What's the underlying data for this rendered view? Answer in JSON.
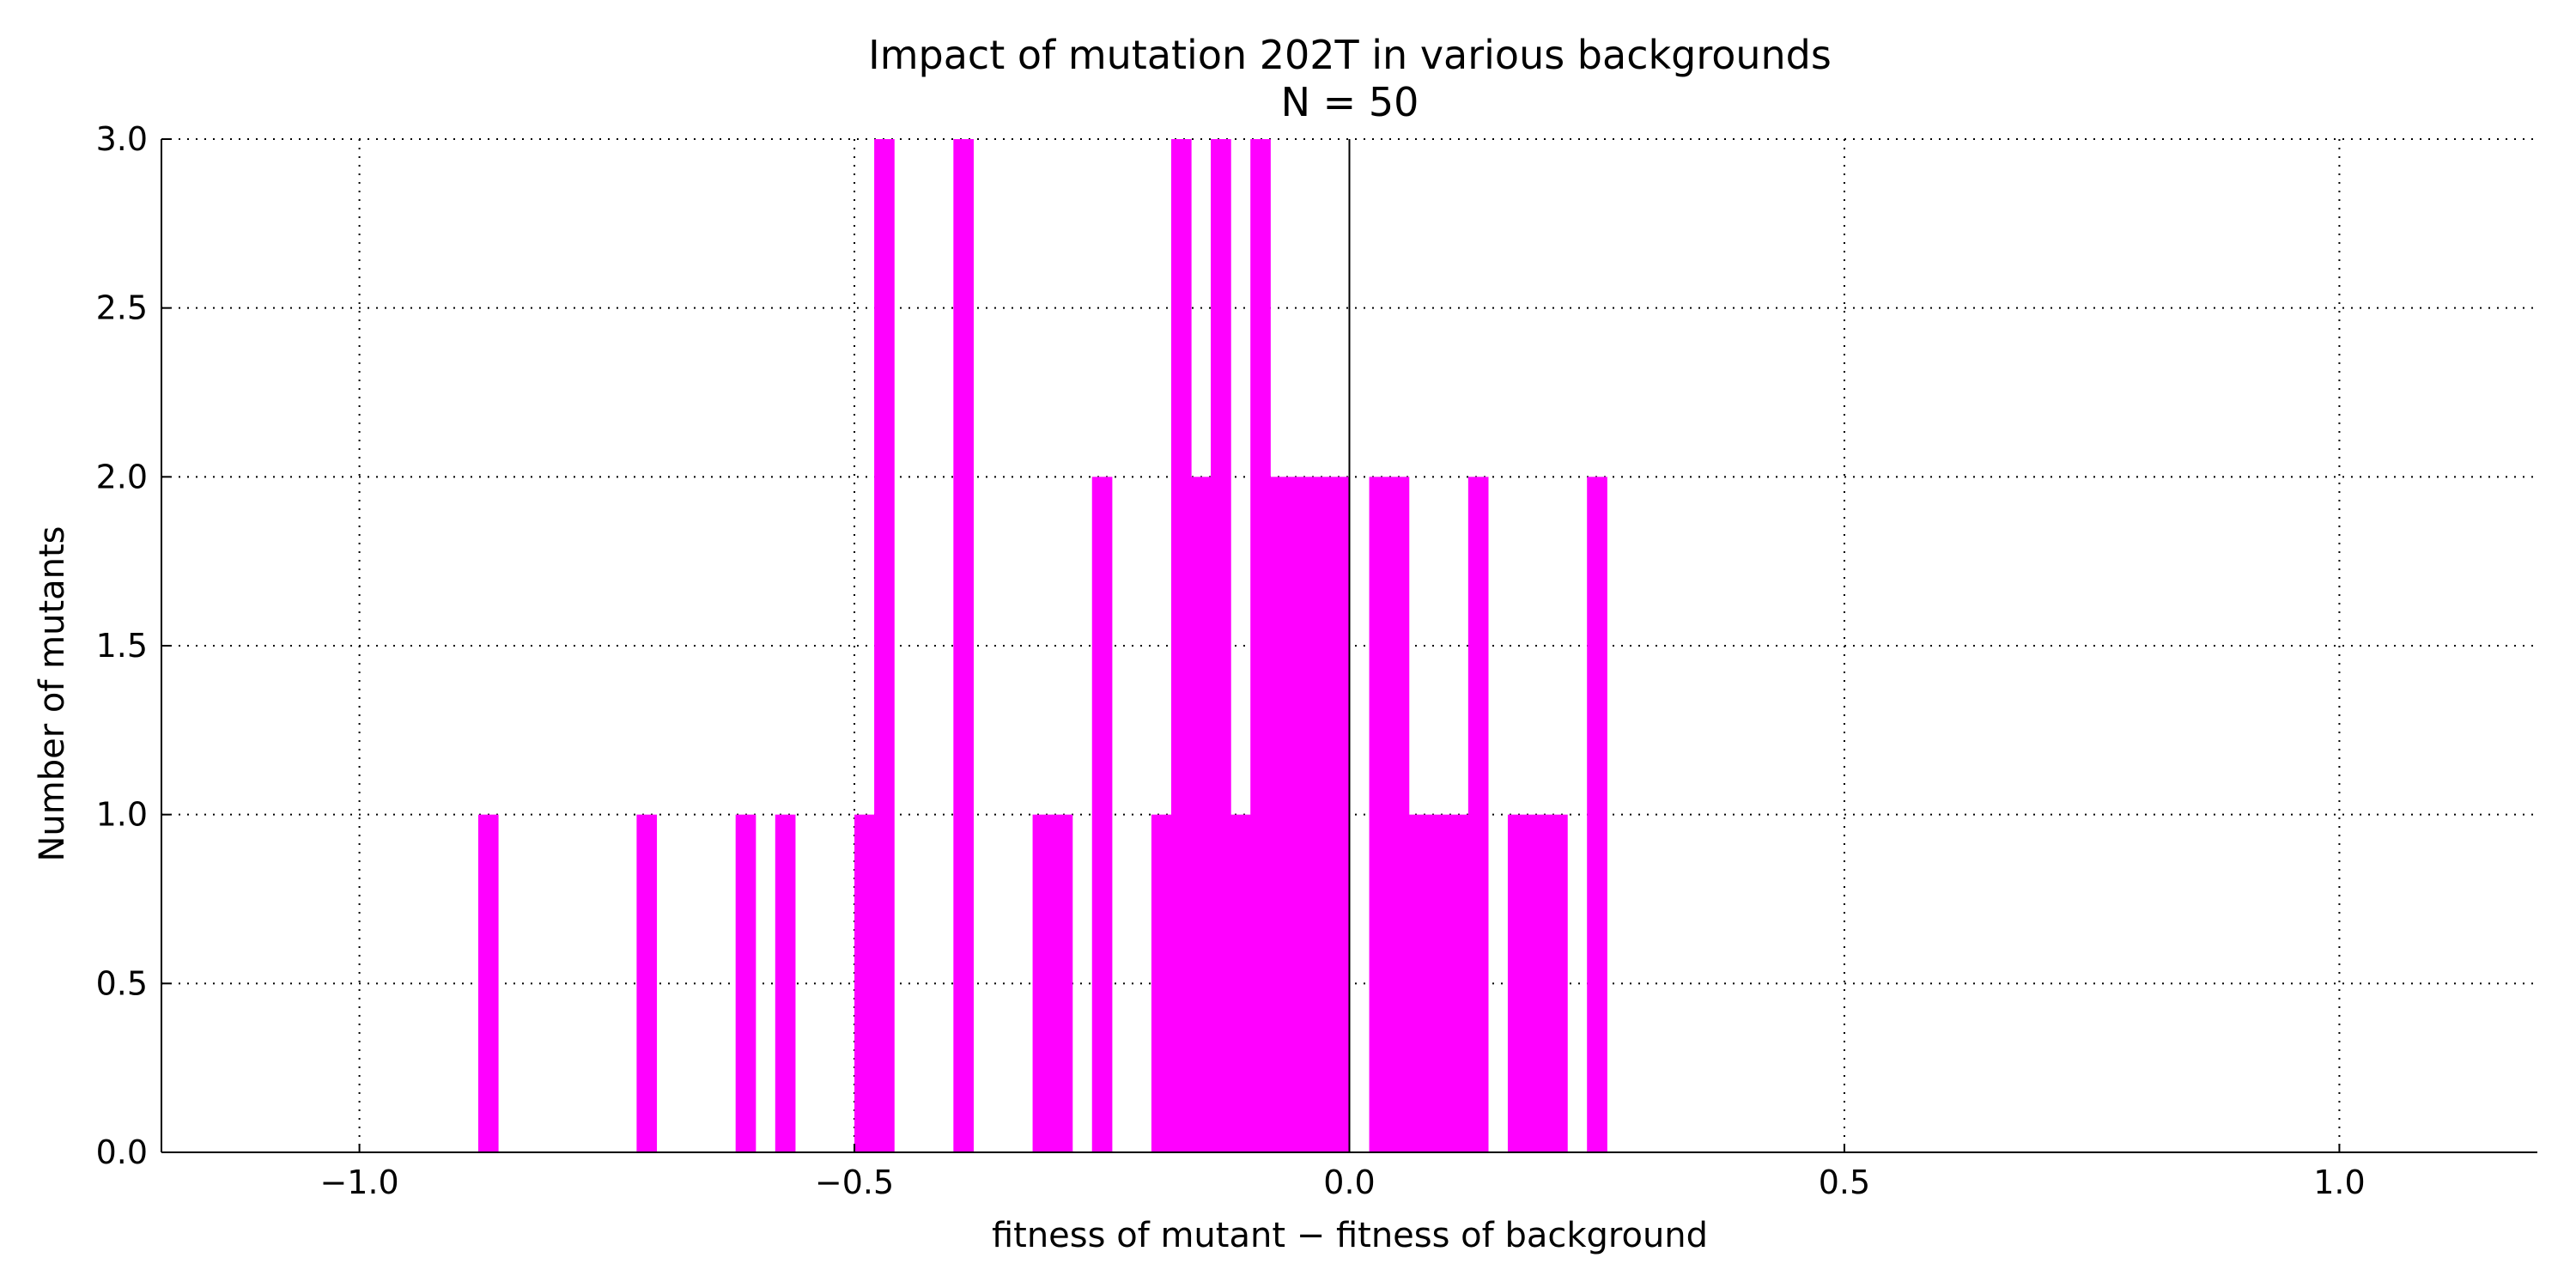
{
  "chart_data": {
    "type": "bar",
    "title": "Impact of mutation 202T in various backgrounds",
    "subtitle": "N = 50",
    "xlabel": "fitness of mutant  −  fitness of background",
    "ylabel": "Number of mutants",
    "xlim": [
      -1.2,
      1.2
    ],
    "ylim": [
      0.0,
      3.0
    ],
    "grid": true,
    "bar_color": "#ff00ff",
    "zero_line": 0.0,
    "x_ticks": [
      {
        "value": -1.0,
        "label": "−1.0"
      },
      {
        "value": -0.5,
        "label": "−0.5"
      },
      {
        "value": 0.0,
        "label": "0.0"
      },
      {
        "value": 0.5,
        "label": "0.5"
      },
      {
        "value": 1.0,
        "label": "1.0"
      }
    ],
    "y_ticks": [
      {
        "value": 0.0,
        "label": "0.0"
      },
      {
        "value": 0.5,
        "label": "0.5"
      },
      {
        "value": 1.0,
        "label": "1.0"
      },
      {
        "value": 1.5,
        "label": "1.5"
      },
      {
        "value": 2.0,
        "label": "2.0"
      },
      {
        "value": 2.5,
        "label": "2.5"
      },
      {
        "value": 3.0,
        "label": "3.0"
      }
    ],
    "bins": [
      {
        "x0": -0.88,
        "x1": -0.86,
        "count": 1
      },
      {
        "x0": -0.72,
        "x1": -0.7,
        "count": 1
      },
      {
        "x0": -0.62,
        "x1": -0.6,
        "count": 1
      },
      {
        "x0": -0.58,
        "x1": -0.56,
        "count": 1
      },
      {
        "x0": -0.5,
        "x1": -0.48,
        "count": 1
      },
      {
        "x0": -0.48,
        "x1": -0.46,
        "count": 3
      },
      {
        "x0": -0.4,
        "x1": -0.38,
        "count": 3
      },
      {
        "x0": -0.32,
        "x1": -0.3,
        "count": 1
      },
      {
        "x0": -0.3,
        "x1": -0.28,
        "count": 1
      },
      {
        "x0": -0.26,
        "x1": -0.24,
        "count": 2
      },
      {
        "x0": -0.2,
        "x1": -0.18,
        "count": 1
      },
      {
        "x0": -0.18,
        "x1": -0.16,
        "count": 3
      },
      {
        "x0": -0.16,
        "x1": -0.14,
        "count": 2
      },
      {
        "x0": -0.14,
        "x1": -0.12,
        "count": 3
      },
      {
        "x0": -0.12,
        "x1": -0.1,
        "count": 1
      },
      {
        "x0": -0.1,
        "x1": -0.08,
        "count": 3
      },
      {
        "x0": -0.08,
        "x1": -0.06,
        "count": 2
      },
      {
        "x0": -0.06,
        "x1": -0.04,
        "count": 2
      },
      {
        "x0": -0.04,
        "x1": -0.02,
        "count": 2
      },
      {
        "x0": -0.02,
        "x1": 0.0,
        "count": 2
      },
      {
        "x0": 0.02,
        "x1": 0.04,
        "count": 2
      },
      {
        "x0": 0.04,
        "x1": 0.06,
        "count": 2
      },
      {
        "x0": 0.06,
        "x1": 0.08,
        "count": 1
      },
      {
        "x0": 0.08,
        "x1": 0.1,
        "count": 1
      },
      {
        "x0": 0.1,
        "x1": 0.12,
        "count": 1
      },
      {
        "x0": 0.12,
        "x1": 0.14,
        "count": 2
      },
      {
        "x0": 0.16,
        "x1": 0.18,
        "count": 1
      },
      {
        "x0": 0.18,
        "x1": 0.2,
        "count": 1
      },
      {
        "x0": 0.2,
        "x1": 0.22,
        "count": 1
      },
      {
        "x0": 0.24,
        "x1": 0.26,
        "count": 2
      }
    ]
  }
}
